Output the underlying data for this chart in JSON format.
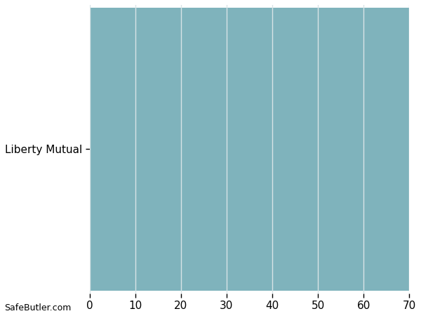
{
  "categories": [
    "Liberty Mutual"
  ],
  "values": [
    70
  ],
  "bar_color": "#7fb3bc",
  "xlim": [
    0,
    70
  ],
  "xticks": [
    0,
    10,
    20,
    30,
    40,
    50,
    60,
    70
  ],
  "background_color": "#ffffff",
  "bar_height": 0.98,
  "grid_color": "#d8e4e6",
  "tick_label_fontsize": 11,
  "ytick_fontsize": 11,
  "watermark": "SafeButler.com"
}
